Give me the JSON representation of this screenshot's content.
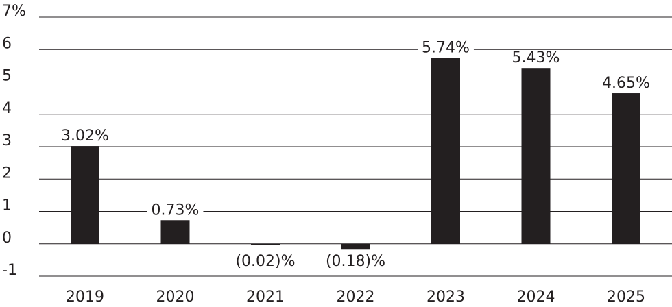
{
  "chart_data": {
    "type": "bar",
    "categories": [
      "2019",
      "2020",
      "2021",
      "2022",
      "2023",
      "2024",
      "2025"
    ],
    "values": [
      3.02,
      0.73,
      -0.02,
      -0.18,
      5.74,
      5.43,
      4.65
    ],
    "data_labels": [
      "3.02%",
      "0.73%",
      "(0.02)%",
      "(0.18)%",
      "5.74%",
      "5.43%",
      "4.65%"
    ],
    "y_ticks": [
      -1,
      0,
      1,
      2,
      3,
      4,
      5,
      6,
      7
    ],
    "y_tick_labels": [
      "-1",
      "0",
      "1",
      "2",
      "3",
      "4",
      "5",
      "6",
      "7%"
    ],
    "ylim": [
      -1,
      7
    ],
    "grid": true,
    "legend": "none",
    "colors": {
      "bar": "#231f20",
      "grid": "#231f20",
      "text": "#231f20"
    }
  }
}
